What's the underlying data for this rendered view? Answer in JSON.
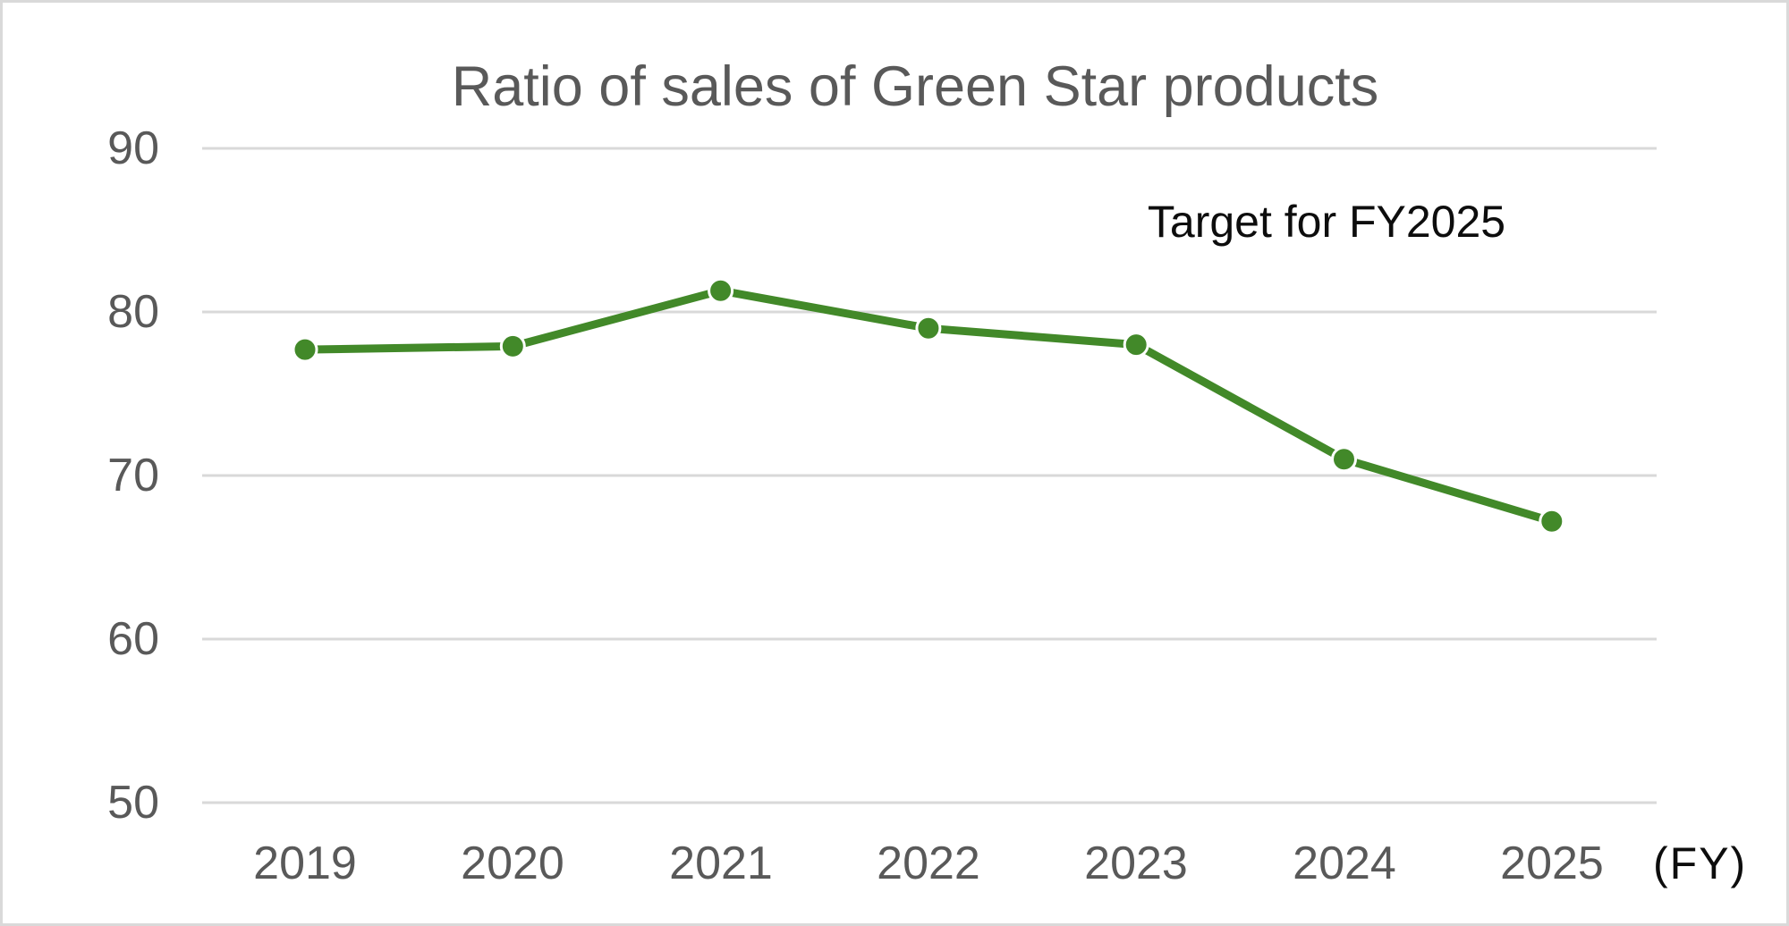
{
  "page": {
    "background": "#ffffff",
    "border_color": "#d9d9d9"
  },
  "chart": {
    "title": "Ratio of sales of Green Star products",
    "annotation": "Target for FY2025",
    "axis_unit_label": "(FY)",
    "colors": {
      "line": "#428929",
      "grid": "#d9d9d9",
      "axis_text": "#595959",
      "annotation_text": "#0d0d0d"
    }
  },
  "chart_data": {
    "type": "line",
    "title": "Ratio of sales of Green Star products",
    "categories": [
      "2019",
      "2020",
      "2021",
      "2022",
      "2023",
      "2024",
      "2025"
    ],
    "series": [
      {
        "name": "Ratio of sales of Green Star products",
        "values": [
          77.7,
          77.9,
          81.3,
          79.0,
          78.0,
          71.0,
          67.2
        ]
      }
    ],
    "xlabel": "(FY)",
    "ylabel": "",
    "ylim": [
      50,
      90
    ],
    "yticks": [
      90,
      80,
      70,
      60,
      50
    ],
    "grid": "horizontal",
    "legend": "none",
    "marker": "circle",
    "annotations": [
      {
        "text": "Target for FY2025",
        "position": "upper-right"
      }
    ]
  }
}
